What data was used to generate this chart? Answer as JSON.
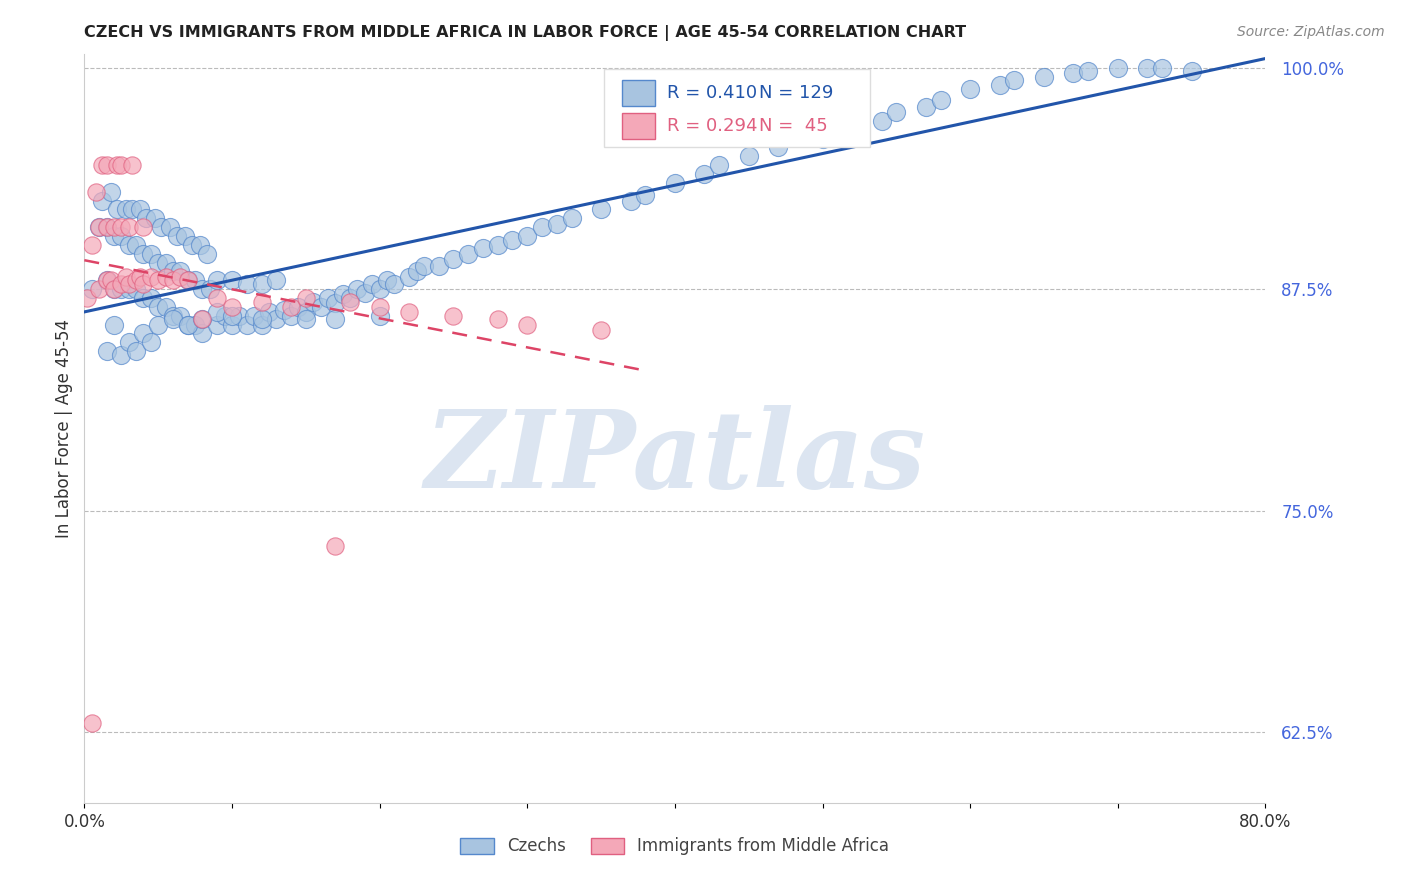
{
  "title": "CZECH VS IMMIGRANTS FROM MIDDLE AFRICA IN LABOR FORCE | AGE 45-54 CORRELATION CHART",
  "source": "Source: ZipAtlas.com",
  "ylabel": "In Labor Force | Age 45-54",
  "xlim": [
    0.0,
    0.8
  ],
  "ylim": [
    0.585,
    1.008
  ],
  "yticks_right": [
    0.625,
    0.75,
    0.875,
    1.0
  ],
  "blue_R": 0.41,
  "blue_N": 129,
  "pink_R": 0.294,
  "pink_N": 45,
  "blue_color": "#A8C4E0",
  "pink_color": "#F4A8B8",
  "blue_edge_color": "#5588CC",
  "pink_edge_color": "#E06080",
  "blue_line_color": "#2255AA",
  "pink_line_color": "#DD4466",
  "legend_blue_label": "Czechs",
  "legend_pink_label": "Immigrants from Middle Africa",
  "watermark": "ZIPatlas",
  "watermark_color": "#C5D5E8",
  "blue_x": [
    0.005,
    0.01,
    0.012,
    0.015,
    0.015,
    0.018,
    0.02,
    0.02,
    0.022,
    0.025,
    0.025,
    0.028,
    0.03,
    0.03,
    0.032,
    0.035,
    0.035,
    0.038,
    0.04,
    0.04,
    0.042,
    0.045,
    0.045,
    0.048,
    0.05,
    0.05,
    0.052,
    0.055,
    0.055,
    0.058,
    0.06,
    0.06,
    0.063,
    0.065,
    0.065,
    0.068,
    0.07,
    0.07,
    0.073,
    0.075,
    0.075,
    0.078,
    0.08,
    0.08,
    0.083,
    0.085,
    0.09,
    0.09,
    0.095,
    0.1,
    0.1,
    0.105,
    0.11,
    0.11,
    0.115,
    0.12,
    0.12,
    0.125,
    0.13,
    0.13,
    0.135,
    0.14,
    0.145,
    0.15,
    0.155,
    0.16,
    0.165,
    0.17,
    0.175,
    0.18,
    0.185,
    0.19,
    0.195,
    0.2,
    0.205,
    0.21,
    0.22,
    0.225,
    0.23,
    0.24,
    0.25,
    0.26,
    0.27,
    0.28,
    0.29,
    0.3,
    0.31,
    0.32,
    0.33,
    0.35,
    0.37,
    0.38,
    0.4,
    0.42,
    0.43,
    0.45,
    0.47,
    0.5,
    0.52,
    0.54,
    0.55,
    0.57,
    0.58,
    0.6,
    0.62,
    0.63,
    0.65,
    0.67,
    0.68,
    0.7,
    0.72,
    0.73,
    0.75,
    0.015,
    0.02,
    0.025,
    0.03,
    0.035,
    0.04,
    0.045,
    0.05,
    0.06,
    0.07,
    0.08,
    0.09,
    0.1,
    0.12,
    0.15,
    0.17,
    0.2
  ],
  "blue_y": [
    0.875,
    0.91,
    0.925,
    0.88,
    0.91,
    0.93,
    0.875,
    0.905,
    0.92,
    0.875,
    0.905,
    0.92,
    0.875,
    0.9,
    0.92,
    0.875,
    0.9,
    0.92,
    0.87,
    0.895,
    0.915,
    0.87,
    0.895,
    0.915,
    0.865,
    0.89,
    0.91,
    0.865,
    0.89,
    0.91,
    0.86,
    0.885,
    0.905,
    0.86,
    0.885,
    0.905,
    0.855,
    0.88,
    0.9,
    0.855,
    0.88,
    0.9,
    0.85,
    0.875,
    0.895,
    0.875,
    0.855,
    0.88,
    0.86,
    0.855,
    0.88,
    0.86,
    0.855,
    0.878,
    0.86,
    0.855,
    0.878,
    0.862,
    0.858,
    0.88,
    0.863,
    0.86,
    0.865,
    0.862,
    0.868,
    0.865,
    0.87,
    0.867,
    0.872,
    0.87,
    0.875,
    0.873,
    0.878,
    0.875,
    0.88,
    0.878,
    0.882,
    0.885,
    0.888,
    0.888,
    0.892,
    0.895,
    0.898,
    0.9,
    0.903,
    0.905,
    0.91,
    0.912,
    0.915,
    0.92,
    0.925,
    0.928,
    0.935,
    0.94,
    0.945,
    0.95,
    0.955,
    0.96,
    0.965,
    0.97,
    0.975,
    0.978,
    0.982,
    0.988,
    0.99,
    0.993,
    0.995,
    0.997,
    0.998,
    1.0,
    1.0,
    1.0,
    0.998,
    0.84,
    0.855,
    0.838,
    0.845,
    0.84,
    0.85,
    0.845,
    0.855,
    0.858,
    0.855,
    0.858,
    0.862,
    0.86,
    0.858,
    0.858,
    0.858,
    0.86
  ],
  "pink_x": [
    0.002,
    0.005,
    0.008,
    0.01,
    0.01,
    0.012,
    0.015,
    0.015,
    0.015,
    0.018,
    0.02,
    0.02,
    0.022,
    0.025,
    0.025,
    0.025,
    0.028,
    0.03,
    0.03,
    0.032,
    0.035,
    0.038,
    0.04,
    0.04,
    0.045,
    0.05,
    0.055,
    0.06,
    0.065,
    0.07,
    0.08,
    0.09,
    0.1,
    0.12,
    0.14,
    0.15,
    0.18,
    0.2,
    0.22,
    0.25,
    0.28,
    0.3,
    0.35,
    0.005,
    0.17
  ],
  "pink_y": [
    0.87,
    0.9,
    0.93,
    0.875,
    0.91,
    0.945,
    0.88,
    0.91,
    0.945,
    0.88,
    0.875,
    0.91,
    0.945,
    0.878,
    0.91,
    0.945,
    0.882,
    0.878,
    0.91,
    0.945,
    0.88,
    0.882,
    0.878,
    0.91,
    0.882,
    0.88,
    0.882,
    0.88,
    0.882,
    0.88,
    0.858,
    0.87,
    0.865,
    0.868,
    0.865,
    0.87,
    0.868,
    0.865,
    0.862,
    0.86,
    0.858,
    0.855,
    0.852,
    0.63,
    0.73
  ]
}
